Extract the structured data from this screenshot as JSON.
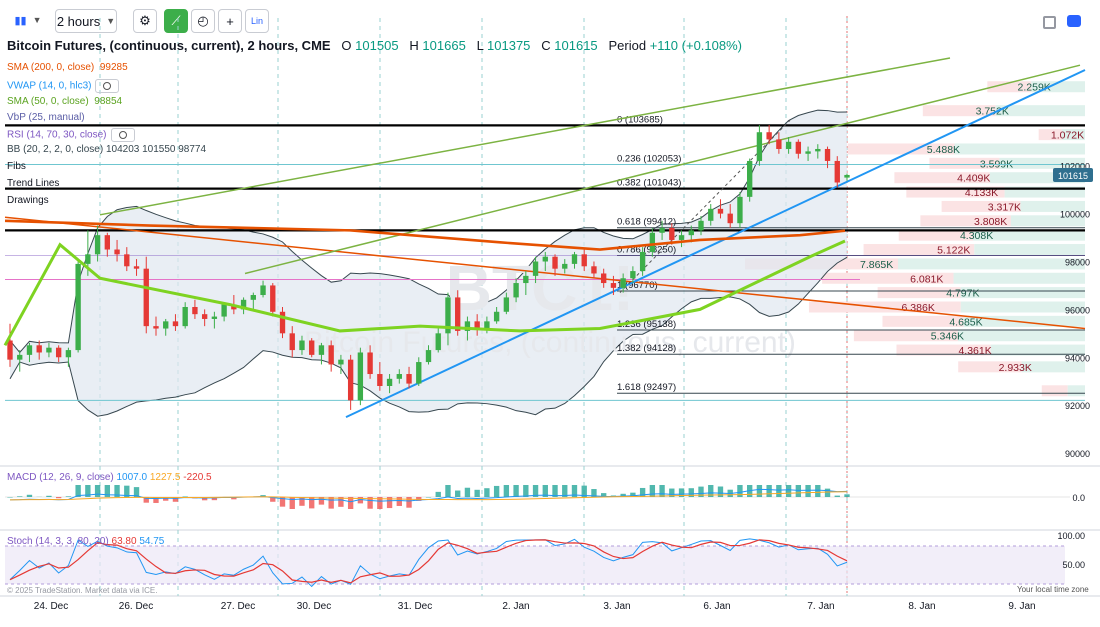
{
  "toolbar": {
    "chart_type_label": "▮▮",
    "interval": "2 hours",
    "indicators_label": "⚙",
    "replay_label": "◴",
    "compare_label": "+",
    "lin_label": "Lin"
  },
  "header": {
    "symbol": "Bitcoin Futures, (continuous, current), 2 hours, CME",
    "o_label": "O",
    "o": "101505",
    "h_label": "H",
    "h": "101665",
    "l_label": "L",
    "l": "101375",
    "c_label": "C",
    "c": "101615",
    "period_label": "Period",
    "change": "+110 (+0.108%)"
  },
  "legend": {
    "sma200": {
      "label": "SMA (200, 0, close)",
      "value": "99285",
      "color": "#e65100"
    },
    "vwap": {
      "label": "VWAP (14, 0, hlc3)",
      "color": "#2196f3"
    },
    "sma50": {
      "label": "SMA (50, 0, close)",
      "value": "98854",
      "color": "#7ed321"
    },
    "vbp": {
      "label": "VbP (25, manual)",
      "color": "#5b5ea6"
    },
    "rsi": {
      "label": "RSI (14, 70, 30, close)",
      "color": "#7e57c2"
    },
    "bb": {
      "label": "BB (20, 2, 2, 0, close)",
      "values": "104203  101550  98774"
    },
    "fibs": "Fibs",
    "trend_lines": "Trend Lines",
    "drawings": "Drawings"
  },
  "macd_legend": {
    "label": "MACD (12, 26, 9, close)",
    "v1": "1007.0",
    "v2": "1227.5",
    "v3": "-220.5"
  },
  "stoch_legend": {
    "label": "Stoch (14, 3, 3, 80, 20)",
    "v1": "63.80",
    "v2": "54.75"
  },
  "watermark_symbol": "BTC1!",
  "watermark_name": "Bitcoin Futures, (continuous, current)",
  "footer_text": "© 2025 TradeStation. Market data via ICE.",
  "timezone_label": "Your local time zone",
  "colors": {
    "up": "#3cae4a",
    "down": "#e53935",
    "sma200": "#e65100",
    "sma50": "#7ed321",
    "vwap": "#2196f3",
    "bb": "#37474f",
    "trend": "#7cb342"
  },
  "chart_data": {
    "type": "candlestick",
    "y_range": [
      89500,
      106500
    ],
    "x_labels": [
      "24. Dec",
      "26. Dec",
      "27. Dec",
      "30. Dec",
      "31. Dec",
      "2. Jan",
      "3. Jan",
      "6. Jan",
      "7. Jan",
      "8. Jan",
      "9. Jan"
    ],
    "y_ticks": [
      90000,
      92000,
      94000,
      96000,
      98000,
      100000,
      102000
    ],
    "last_price": "101615",
    "candles": [
      [
        94700,
        95400,
        93600,
        93900
      ],
      [
        93900,
        94300,
        93400,
        94100
      ],
      [
        94100,
        94600,
        93800,
        94500
      ],
      [
        94500,
        94700,
        93900,
        94200
      ],
      [
        94200,
        94600,
        94000,
        94400
      ],
      [
        94400,
        94500,
        93800,
        94000
      ],
      [
        94000,
        94400,
        93600,
        94300
      ],
      [
        94300,
        98100,
        94200,
        97900
      ],
      [
        97900,
        99300,
        97400,
        98300
      ],
      [
        98300,
        99500,
        98000,
        99100
      ],
      [
        99100,
        99200,
        98200,
        98500
      ],
      [
        98500,
        98900,
        98000,
        98300
      ],
      [
        98300,
        98600,
        97600,
        97800
      ],
      [
        97800,
        98100,
        97400,
        97700
      ],
      [
        97700,
        98200,
        95000,
        95300
      ],
      [
        95300,
        95700,
        94900,
        95200
      ],
      [
        95200,
        95600,
        94900,
        95500
      ],
      [
        95500,
        95800,
        95100,
        95300
      ],
      [
        95300,
        96300,
        95200,
        96100
      ],
      [
        96100,
        96400,
        95600,
        95800
      ],
      [
        95800,
        96000,
        95300,
        95600
      ],
      [
        95600,
        95900,
        95200,
        95700
      ],
      [
        95700,
        96300,
        95500,
        96200
      ],
      [
        96200,
        96600,
        95800,
        96000
      ],
      [
        96000,
        96500,
        95800,
        96400
      ],
      [
        96400,
        96700,
        96000,
        96600
      ],
      [
        96600,
        97200,
        96500,
        97000
      ],
      [
        97000,
        97100,
        95700,
        95900
      ],
      [
        95900,
        96100,
        94800,
        95000
      ],
      [
        95000,
        95300,
        94000,
        94300
      ],
      [
        94300,
        94900,
        94100,
        94700
      ],
      [
        94700,
        94800,
        94000,
        94100
      ],
      [
        94100,
        94600,
        93700,
        94500
      ],
      [
        94500,
        94700,
        93400,
        93700
      ],
      [
        93700,
        94100,
        93300,
        93900
      ],
      [
        93900,
        94100,
        91800,
        92200
      ],
      [
        92200,
        94400,
        92000,
        94200
      ],
      [
        94200,
        94500,
        93100,
        93300
      ],
      [
        93300,
        93800,
        92600,
        92800
      ],
      [
        92800,
        93300,
        92500,
        93100
      ],
      [
        93100,
        93500,
        92900,
        93300
      ],
      [
        93300,
        93600,
        92700,
        92900
      ],
      [
        92900,
        94000,
        92800,
        93800
      ],
      [
        93800,
        94500,
        93700,
        94300
      ],
      [
        94300,
        95200,
        94200,
        95000
      ],
      [
        95000,
        96700,
        94500,
        96500
      ],
      [
        96500,
        96800,
        94900,
        95100
      ],
      [
        95100,
        95700,
        94700,
        95500
      ],
      [
        95500,
        95800,
        94900,
        95200
      ],
      [
        95200,
        95700,
        95000,
        95500
      ],
      [
        95500,
        96100,
        95400,
        95900
      ],
      [
        95900,
        96700,
        95800,
        96500
      ],
      [
        96500,
        97300,
        96300,
        97100
      ],
      [
        97100,
        97600,
        96600,
        97400
      ],
      [
        97400,
        98200,
        97100,
        98000
      ],
      [
        98000,
        98400,
        97600,
        98200
      ],
      [
        98200,
        98300,
        97400,
        97700
      ],
      [
        97700,
        98100,
        97500,
        97900
      ],
      [
        97900,
        98400,
        97700,
        98300
      ],
      [
        98300,
        98500,
        97600,
        97800
      ],
      [
        97800,
        98000,
        97300,
        97500
      ],
      [
        97500,
        97700,
        96900,
        97100
      ],
      [
        97100,
        97400,
        96600,
        96900
      ],
      [
        96900,
        97500,
        96700,
        97300
      ],
      [
        97300,
        97800,
        97100,
        97600
      ],
      [
        97600,
        98600,
        97400,
        98400
      ],
      [
        98400,
        99400,
        98200,
        99200
      ],
      [
        99200,
        99700,
        98900,
        99400
      ],
      [
        99400,
        99600,
        98700,
        98900
      ],
      [
        98900,
        99300,
        98600,
        99100
      ],
      [
        99100,
        99500,
        98800,
        99300
      ],
      [
        99300,
        99900,
        99100,
        99700
      ],
      [
        99700,
        100400,
        99500,
        100200
      ],
      [
        100200,
        100600,
        99800,
        100000
      ],
      [
        100000,
        100400,
        99400,
        99600
      ],
      [
        99600,
        100900,
        99400,
        100700
      ],
      [
        100700,
        102300,
        100500,
        102200
      ],
      [
        102200,
        103700,
        102000,
        103400
      ],
      [
        103400,
        103700,
        102900,
        103100
      ],
      [
        103100,
        103400,
        102500,
        102700
      ],
      [
        102700,
        103200,
        102500,
        103000
      ],
      [
        103000,
        103100,
        102300,
        102500
      ],
      [
        102500,
        102800,
        102200,
        102600
      ],
      [
        102600,
        102900,
        102300,
        102700
      ],
      [
        102700,
        102800,
        101900,
        102200
      ],
      [
        102200,
        102400,
        101100,
        101300
      ],
      [
        101505,
        101665,
        101375,
        101615
      ]
    ],
    "sma50": [
      [
        5,
        94500
      ],
      [
        60,
        98700
      ],
      [
        100,
        97300
      ],
      [
        230,
        96200
      ],
      [
        340,
        95100
      ],
      [
        420,
        95300
      ],
      [
        520,
        95100
      ],
      [
        600,
        95200
      ],
      [
        700,
        96000
      ],
      [
        760,
        97200
      ],
      [
        810,
        98200
      ],
      [
        845,
        98854
      ]
    ],
    "sma200": [
      [
        5,
        99700
      ],
      [
        150,
        99500
      ],
      [
        350,
        99300
      ],
      [
        500,
        98800
      ],
      [
        600,
        98500
      ],
      [
        700,
        98900
      ],
      [
        800,
        99100
      ],
      [
        845,
        99285
      ]
    ],
    "fib_levels": [
      {
        "label": "0 (103685)",
        "value": 103685
      },
      {
        "label": "0.236 (102053)",
        "value": 102053
      },
      {
        "label": "0.382 (101043)",
        "value": 101043
      },
      {
        "label": "0.618 (99412)",
        "value": 99412
      },
      {
        "label": "0.786 (98250)",
        "value": 98250
      },
      {
        "label": "1 (96770)",
        "value": 96770
      },
      {
        "label": "1.236 (95138)",
        "value": 95138
      },
      {
        "label": "1.382 (94128)",
        "value": 94128
      },
      {
        "label": "1.618 (92497)",
        "value": 92497
      }
    ],
    "volume_profile": [
      {
        "label": "2.259K",
        "price": 105300,
        "down": 0.45,
        "up": 0.55
      },
      {
        "label": "3.752K",
        "price": 104300,
        "down": 0.45,
        "up": 0.55
      },
      {
        "label": "1.072K",
        "price": 103300,
        "down": 0.5,
        "up": 0.5
      },
      {
        "label": "5.488K",
        "price": 102700,
        "down": 0.45,
        "up": 0.55
      },
      {
        "label": "3.599K",
        "price": 102100,
        "down": 0.45,
        "up": 0.55
      },
      {
        "label": "4.409K",
        "price": 101500,
        "down": 0.5,
        "up": 0.5
      },
      {
        "label": "4.133K",
        "price": 100900,
        "down": 0.55,
        "up": 0.45
      },
      {
        "label": "3.317K",
        "price": 100300,
        "down": 0.55,
        "up": 0.45
      },
      {
        "label": "3.808K",
        "price": 99700,
        "down": 0.55,
        "up": 0.45
      },
      {
        "label": "4.308K",
        "price": 99100,
        "down": 0.4,
        "up": 0.6
      },
      {
        "label": "5.122K",
        "price": 98500,
        "down": 0.5,
        "up": 0.5
      },
      {
        "label": "7.865K",
        "price": 97900,
        "down": 0.45,
        "up": 0.55
      },
      {
        "label": "6.081K",
        "price": 97300,
        "down": 0.5,
        "up": 0.5
      },
      {
        "label": "4.797K",
        "price": 96700,
        "down": 0.4,
        "up": 0.6
      },
      {
        "label": "6.386K",
        "price": 96100,
        "down": 0.55,
        "up": 0.45
      },
      {
        "label": "4.685K",
        "price": 95500,
        "down": 0.4,
        "up": 0.6
      },
      {
        "label": "5.346K",
        "price": 94900,
        "down": 0.45,
        "up": 0.55
      },
      {
        "label": "4.361K",
        "price": 94300,
        "down": 0.5,
        "up": 0.5
      },
      {
        "label": "2.933K",
        "price": 93600,
        "down": 0.5,
        "up": 0.5
      },
      {
        "label": "",
        "price": 92600,
        "down": 0.6,
        "up": 0.4
      }
    ],
    "macd_ticks": [
      "0.0"
    ],
    "stoch_ticks": [
      "100.00",
      "50.00"
    ]
  }
}
